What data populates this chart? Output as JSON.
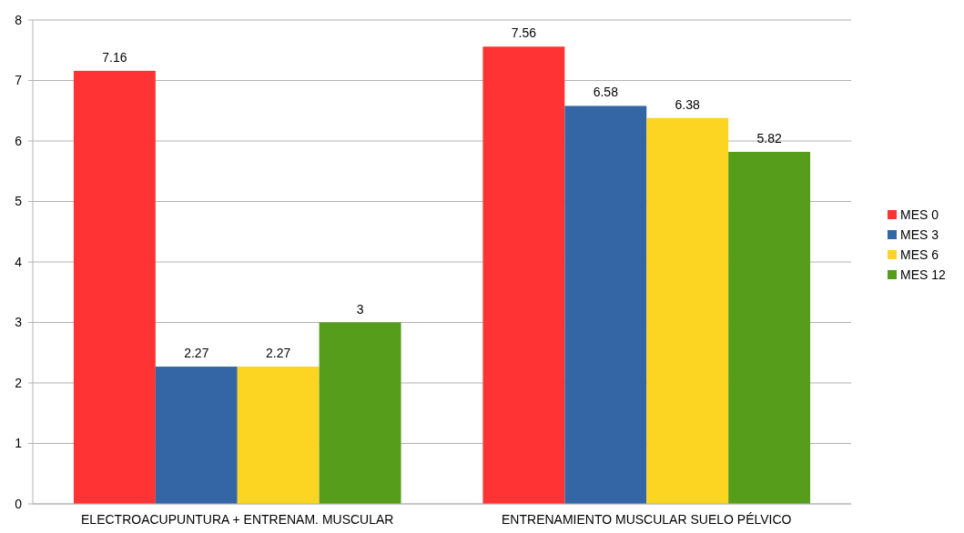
{
  "chart_data": {
    "type": "bar",
    "categories": [
      "ELECTROACUPUNTURA + ENTRENAM. MUSCULAR",
      "ENTRENAMIENTO MUSCULAR SUELO PÉLVICO"
    ],
    "series": [
      {
        "name": "MES 0",
        "color": "#ff3333",
        "values": [
          7.16,
          7.56
        ]
      },
      {
        "name": "MES 3",
        "color": "#3465a4",
        "values": [
          2.27,
          6.58
        ]
      },
      {
        "name": "MES 6",
        "color": "#fcd422",
        "values": [
          2.27,
          6.38
        ]
      },
      {
        "name": "MES 12",
        "color": "#579d1c",
        "values": [
          3,
          5.82
        ]
      }
    ],
    "ylim": [
      0,
      8
    ],
    "yticks": [
      0,
      1,
      2,
      3,
      4,
      5,
      6,
      7,
      8
    ],
    "grid": "y",
    "legend": "right",
    "data_labels": true
  }
}
